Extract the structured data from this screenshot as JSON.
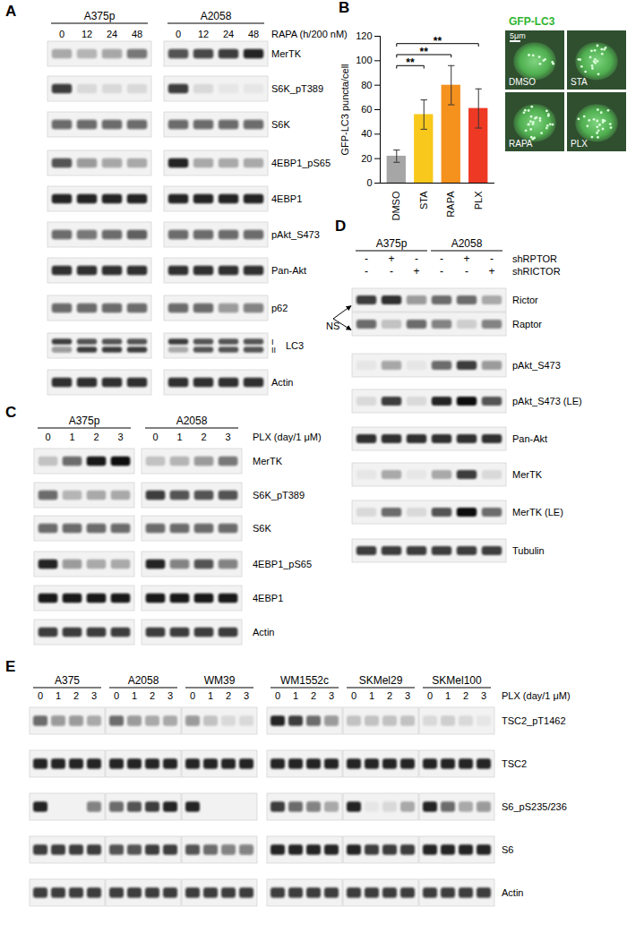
{
  "panels": [
    {
      "label": "A",
      "treatment": "RAPA (h/200 nM)",
      "groups": [
        {
          "name": "A375p",
          "lanes": [
            "0",
            "12",
            "24",
            "48"
          ]
        },
        {
          "name": "A2058",
          "lanes": [
            "0",
            "12",
            "24",
            "48"
          ]
        }
      ],
      "rows": [
        {
          "name": "MerTK",
          "intensity": [
            0.3,
            0.25,
            0.35,
            0.55,
            0.7,
            0.75,
            0.8,
            0.9
          ]
        },
        {
          "name": "S6K_pT389",
          "intensity": [
            0.8,
            0.1,
            0.1,
            0.1,
            0.8,
            0.1,
            0.05,
            0.05
          ]
        },
        {
          "name": "S6K",
          "intensity": [
            0.6,
            0.6,
            0.6,
            0.6,
            0.6,
            0.6,
            0.6,
            0.6
          ]
        },
        {
          "name": "4EBP1_pS65",
          "intensity": [
            0.7,
            0.4,
            0.35,
            0.3,
            0.9,
            0.3,
            0.3,
            0.3
          ]
        },
        {
          "name": "4EBP1",
          "intensity": [
            0.9,
            0.9,
            0.9,
            0.9,
            0.9,
            0.9,
            0.9,
            0.9
          ]
        },
        {
          "name": "pAkt_S473",
          "intensity": [
            0.6,
            0.55,
            0.6,
            0.65,
            0.6,
            0.6,
            0.6,
            0.6
          ]
        },
        {
          "name": "Pan-Akt",
          "intensity": [
            0.85,
            0.85,
            0.85,
            0.85,
            0.85,
            0.85,
            0.85,
            0.85
          ]
        },
        {
          "name": "p62",
          "intensity": [
            0.6,
            0.6,
            0.6,
            0.6,
            0.6,
            0.6,
            0.4,
            0.5
          ]
        },
        {
          "name": "LC3",
          "bands": [
            "I",
            "II"
          ],
          "intensity": [
            [
              0.8,
              0.7,
              0.7,
              0.7,
              0.8,
              0.7,
              0.7,
              0.7
            ],
            [
              0.4,
              0.8,
              0.8,
              0.8,
              0.3,
              0.7,
              0.7,
              0.7
            ]
          ]
        },
        {
          "name": "Actin",
          "intensity": [
            0.85,
            0.85,
            0.85,
            0.85,
            0.85,
            0.85,
            0.85,
            0.85
          ]
        }
      ]
    },
    {
      "label": "C",
      "treatment": "PLX (day/1 μM)",
      "groups": [
        {
          "name": "A375p",
          "lanes": [
            "0",
            "1",
            "2",
            "3"
          ]
        },
        {
          "name": "A2058",
          "lanes": [
            "0",
            "1",
            "2",
            "3"
          ]
        }
      ],
      "rows": [
        {
          "name": "MerTK",
          "intensity": [
            0.2,
            0.6,
            0.95,
            1.0,
            0.2,
            0.25,
            0.4,
            0.55
          ]
        },
        {
          "name": "S6K_pT389",
          "intensity": [
            0.6,
            0.25,
            0.3,
            0.3,
            0.8,
            0.7,
            0.7,
            0.7
          ]
        },
        {
          "name": "S6K",
          "intensity": [
            0.6,
            0.6,
            0.6,
            0.6,
            0.6,
            0.6,
            0.6,
            0.6
          ]
        },
        {
          "name": "4EBP1_pS65",
          "intensity": [
            0.9,
            0.4,
            0.3,
            0.3,
            0.9,
            0.5,
            0.7,
            0.5
          ]
        },
        {
          "name": "4EBP1",
          "intensity": [
            0.95,
            0.95,
            0.95,
            0.95,
            0.95,
            0.95,
            0.95,
            0.95
          ]
        },
        {
          "name": "Actin",
          "intensity": [
            0.8,
            0.8,
            0.8,
            0.8,
            0.8,
            0.8,
            0.8,
            0.8
          ]
        }
      ]
    },
    {
      "label": "D",
      "groups": [
        {
          "name": "A375p"
        },
        {
          "name": "A2058"
        }
      ],
      "conditions": [
        {
          "name": "shRPTOR",
          "signs": [
            "-",
            "+",
            "-",
            "-",
            "+",
            "-"
          ]
        },
        {
          "name": "shRICTOR",
          "signs": [
            "-",
            "-",
            "+",
            "-",
            "-",
            "+"
          ]
        }
      ],
      "annotation": {
        "text": "NS",
        "targets": [
          "Rictor",
          "Raptor"
        ]
      },
      "rows": [
        {
          "name": "Rictor",
          "intensity": [
            0.8,
            0.85,
            0.4,
            0.6,
            0.6,
            0.3
          ]
        },
        {
          "name": "Raptor",
          "intensity": [
            0.6,
            0.2,
            0.6,
            0.5,
            0.15,
            0.5
          ]
        },
        {
          "name": "pAkt_S473",
          "intensity": [
            0.05,
            0.35,
            0.05,
            0.6,
            0.8,
            0.4
          ]
        },
        {
          "name": "pAkt_S473 (LE)",
          "intensity": [
            0.1,
            0.8,
            0.1,
            0.9,
            1.0,
            0.7
          ]
        },
        {
          "name": "Pan-Akt",
          "intensity": [
            0.85,
            0.85,
            0.85,
            0.85,
            0.85,
            0.85
          ]
        },
        {
          "name": "MerTK",
          "intensity": [
            0.05,
            0.3,
            0.05,
            0.3,
            0.8,
            0.1
          ]
        },
        {
          "name": "MerTK (LE)",
          "intensity": [
            0.1,
            0.6,
            0.1,
            0.7,
            1.0,
            0.6
          ]
        },
        {
          "name": "Tubulin",
          "intensity": [
            0.8,
            0.8,
            0.8,
            0.8,
            0.8,
            0.8
          ]
        }
      ]
    },
    {
      "label": "E",
      "treatment": "PLX (day/1 μM)",
      "groups": [
        {
          "name": "A375",
          "lanes": [
            "0",
            "1",
            "2",
            "3"
          ]
        },
        {
          "name": "A2058",
          "lanes": [
            "0",
            "1",
            "2",
            "3"
          ]
        },
        {
          "name": "WM39",
          "lanes": [
            "0",
            "1",
            "2",
            "3"
          ]
        },
        {
          "name": "WM1552c",
          "lanes": [
            "0",
            "1",
            "2",
            "3"
          ]
        },
        {
          "name": "SKMel29",
          "lanes": [
            "0",
            "1",
            "2",
            "3"
          ]
        },
        {
          "name": "SKMel100",
          "lanes": [
            "0",
            "1",
            "2",
            "3"
          ]
        }
      ],
      "rows": [
        {
          "name": "TSC2_pT1462",
          "intensity": [
            0.6,
            0.4,
            0.4,
            0.3,
            0.6,
            0.4,
            0.3,
            0.3,
            0.4,
            0.2,
            0.1,
            0.1,
            0.9,
            0.8,
            0.6,
            0.4,
            0.2,
            0.2,
            0.2,
            0.2,
            0.1,
            0.15,
            0.1,
            0.05
          ]
        },
        {
          "name": "TSC2",
          "intensity": [
            0.9,
            0.9,
            0.9,
            0.9,
            0.9,
            0.9,
            0.9,
            0.9,
            0.9,
            0.9,
            0.9,
            0.9,
            0.9,
            0.9,
            0.9,
            0.9,
            0.9,
            0.9,
            0.9,
            0.9,
            0.9,
            0.9,
            0.9,
            0.9
          ]
        },
        {
          "name": "S6_pS235/236",
          "intensity": [
            0.9,
            0.0,
            0.0,
            0.5,
            0.6,
            0.7,
            0.8,
            0.9,
            0.9,
            0.0,
            0.0,
            0.0,
            0.8,
            0.6,
            0.5,
            0.3,
            0.9,
            0.05,
            0.1,
            0.3,
            0.9,
            0.6,
            0.3,
            0.4
          ]
        },
        {
          "name": "S6",
          "intensity": [
            0.8,
            0.8,
            0.8,
            0.8,
            0.7,
            0.7,
            0.8,
            0.8,
            0.7,
            0.6,
            0.5,
            0.5,
            0.9,
            0.9,
            0.9,
            0.9,
            0.9,
            0.8,
            0.8,
            0.8,
            0.9,
            0.9,
            0.9,
            0.9
          ]
        },
        {
          "name": "Actin",
          "intensity": [
            0.8,
            0.8,
            0.8,
            0.8,
            0.8,
            0.8,
            0.8,
            0.8,
            0.8,
            0.8,
            0.8,
            0.8,
            0.8,
            0.8,
            0.8,
            0.8,
            0.8,
            0.8,
            0.8,
            0.8,
            0.8,
            0.8,
            0.8,
            0.8
          ]
        }
      ]
    }
  ],
  "panel_B": {
    "label": "B",
    "micrographs": {
      "title": "GFP-LC3",
      "scale_bar": "5μm",
      "labels": [
        "DMSO",
        "STA",
        "RAPA",
        "PLX"
      ]
    }
  },
  "chart_data": {
    "type": "bar",
    "y_label": "GFP-LC3 puncta/cell",
    "categories": [
      "DMSO",
      "STA",
      "RAPA",
      "PLX"
    ],
    "values": [
      22,
      56,
      80,
      61
    ],
    "errors": [
      5,
      12,
      16,
      16
    ],
    "colors": [
      "#a6a6a6",
      "#f8c81c",
      "#f5921e",
      "#ee3a24"
    ],
    "ylim": [
      0,
      120
    ],
    "yticks": [
      0,
      20,
      40,
      60,
      80,
      100,
      120
    ],
    "annotations": [
      {
        "from": "DMSO",
        "to": "STA",
        "text": "**"
      },
      {
        "from": "DMSO",
        "to": "RAPA",
        "text": "**"
      },
      {
        "from": "DMSO",
        "to": "PLX",
        "text": "**"
      }
    ]
  }
}
